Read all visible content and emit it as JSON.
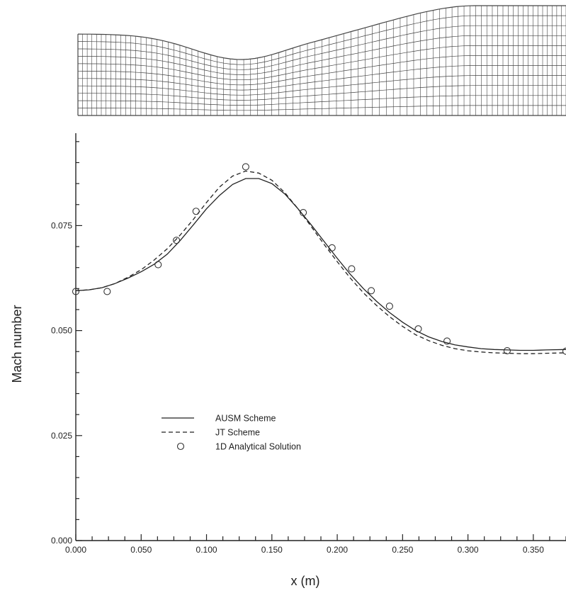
{
  "chart_data": {
    "type": "line",
    "title": "",
    "xlabel": "x (m)",
    "ylabel": "Mach number",
    "xlim": [
      0.0,
      0.375
    ],
    "ylim": [
      0.0,
      0.097
    ],
    "x_ticks": [
      "0.000",
      "0.050",
      "0.100",
      "0.150",
      "0.200",
      "0.250",
      "0.300",
      "0.350"
    ],
    "y_ticks": [
      "0.000",
      "0.025",
      "0.050",
      "0.075"
    ],
    "grid": false,
    "legend_position": "lower-left",
    "series": [
      {
        "name": "AUSM Scheme",
        "style": "solid",
        "x": [
          0.0,
          0.01,
          0.02,
          0.03,
          0.04,
          0.05,
          0.06,
          0.07,
          0.08,
          0.09,
          0.1,
          0.11,
          0.12,
          0.13,
          0.14,
          0.15,
          0.16,
          0.17,
          0.18,
          0.19,
          0.2,
          0.21,
          0.22,
          0.23,
          0.24,
          0.25,
          0.26,
          0.27,
          0.28,
          0.29,
          0.3,
          0.31,
          0.32,
          0.33,
          0.34,
          0.35,
          0.36,
          0.375
        ],
        "y": [
          0.0595,
          0.0597,
          0.0602,
          0.0612,
          0.0625,
          0.064,
          0.0658,
          0.0682,
          0.0715,
          0.0752,
          0.079,
          0.0822,
          0.0848,
          0.0862,
          0.0862,
          0.085,
          0.0825,
          0.079,
          0.0752,
          0.0712,
          0.0672,
          0.0634,
          0.06,
          0.057,
          0.0543,
          0.052,
          0.05,
          0.0485,
          0.0474,
          0.0466,
          0.0461,
          0.0457,
          0.0455,
          0.0454,
          0.0453,
          0.0453,
          0.0454,
          0.0455
        ]
      },
      {
        "name": "JT Scheme",
        "style": "dashed",
        "x": [
          0.0,
          0.01,
          0.02,
          0.03,
          0.04,
          0.05,
          0.06,
          0.07,
          0.08,
          0.09,
          0.1,
          0.11,
          0.12,
          0.13,
          0.14,
          0.15,
          0.16,
          0.17,
          0.18,
          0.19,
          0.2,
          0.21,
          0.22,
          0.23,
          0.24,
          0.25,
          0.26,
          0.27,
          0.28,
          0.29,
          0.3,
          0.31,
          0.32,
          0.33,
          0.34,
          0.35,
          0.36,
          0.375
        ],
        "y": [
          0.0595,
          0.0597,
          0.0602,
          0.0612,
          0.0627,
          0.0645,
          0.0668,
          0.0695,
          0.0728,
          0.0765,
          0.0805,
          0.0842,
          0.0868,
          0.088,
          0.0875,
          0.0858,
          0.0828,
          0.079,
          0.0748,
          0.0705,
          0.0664,
          0.0625,
          0.059,
          0.056,
          0.0533,
          0.051,
          0.049,
          0.0476,
          0.0465,
          0.0457,
          0.0452,
          0.0449,
          0.0447,
          0.0446,
          0.0445,
          0.0445,
          0.0446,
          0.0447
        ]
      },
      {
        "name": "1D Analytical Solution",
        "style": "markers",
        "x": [
          0.0,
          0.024,
          0.063,
          0.077,
          0.092,
          0.13,
          0.174,
          0.196,
          0.211,
          0.226,
          0.24,
          0.262,
          0.284,
          0.33,
          0.375
        ],
        "y": [
          0.0593,
          0.0593,
          0.0657,
          0.0715,
          0.0784,
          0.089,
          0.0781,
          0.0697,
          0.0647,
          0.0595,
          0.0558,
          0.0504,
          0.0475,
          0.0452,
          0.0451
        ]
      }
    ],
    "inset": {
      "description_type": "mesh",
      "columns": 82,
      "rows": 11
    }
  }
}
